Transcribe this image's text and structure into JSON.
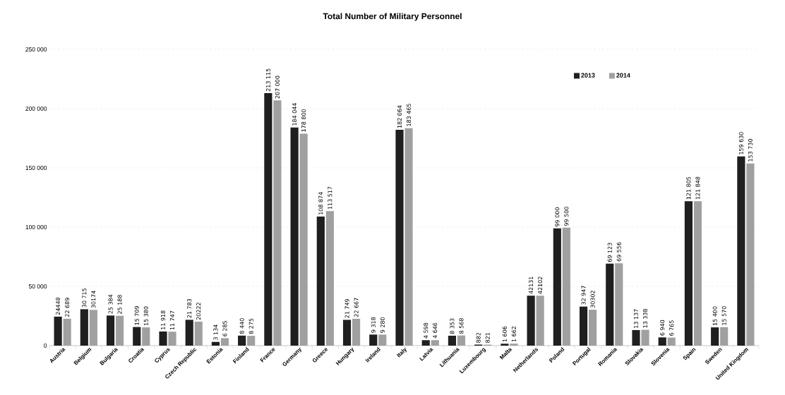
{
  "chart_data": {
    "type": "bar",
    "title": "Total Number of Military Personnel",
    "categories": [
      "Austria",
      "Belgium",
      "Bulgaria",
      "Croatia",
      "Cyprus",
      "Czech Republic",
      "Estonia",
      "Finland",
      "France",
      "Germany",
      "Greece",
      "Hungary",
      "Ireland",
      "Italy",
      "Latvia",
      "Lithuania",
      "Luxembourg",
      "Malta",
      "Netherlands",
      "Poland",
      "Portugal",
      "Romania",
      "Slovakia",
      "Slovenia",
      "Spain",
      "Sweden",
      "United Kingdom"
    ],
    "series": [
      {
        "name": "2013",
        "color": "#1f1f1f",
        "values": [
          24448,
          30715,
          25384,
          15709,
          11918,
          21783,
          3134,
          8440,
          213115,
          184044,
          108874,
          21749,
          9318,
          182064,
          4598,
          8353,
          882,
          1606,
          42131,
          99000,
          32947,
          69123,
          13137,
          6940,
          121805,
          15400,
          159630
        ],
        "value_labels": [
          "24448",
          "30 715",
          "25 384",
          "15 709",
          "11 918",
          "21 783",
          "3 134",
          "8 440",
          "213 115",
          "184 044",
          "108 874",
          "21 749",
          "9 318",
          "182 064",
          "4 598",
          "8 353",
          "882",
          "1 606",
          "42131",
          "99 000",
          "32 947",
          "69 123",
          "13 137",
          "6 940",
          "121 805",
          "15 400",
          "159 630"
        ]
      },
      {
        "name": "2014",
        "color": "#a0a0a0",
        "values": [
          22689,
          30174,
          25188,
          15380,
          11747,
          20222,
          6285,
          8275,
          207000,
          178800,
          113517,
          22667,
          9280,
          183465,
          4646,
          8568,
          821,
          1662,
          42102,
          99500,
          30302,
          69556,
          13338,
          6765,
          121848,
          15570,
          153730
        ],
        "value_labels": [
          "22 689",
          "30174",
          "25 188",
          "15 380",
          "11 747",
          "20222",
          "6 285",
          "8 275",
          "207 000",
          "178 800",
          "113 517",
          "22 667",
          "9 280",
          "183 465",
          "4 646",
          "8 568",
          "821",
          "1 662",
          "42102",
          "99 500",
          "30302",
          "69 556",
          "13 338",
          "6 765",
          "121 848",
          "15 570",
          "153 730"
        ]
      }
    ],
    "ylim": [
      0,
      250000
    ],
    "yticks": [
      {
        "value": 0,
        "label": "0"
      },
      {
        "value": 50000,
        "label": "50 000"
      },
      {
        "value": 100000,
        "label": "100 000"
      },
      {
        "value": 150000,
        "label": "150 000"
      },
      {
        "value": 200000,
        "label": "200 000"
      },
      {
        "value": 250000,
        "label": "250 000"
      }
    ],
    "grid": "y",
    "legend": "top right"
  }
}
